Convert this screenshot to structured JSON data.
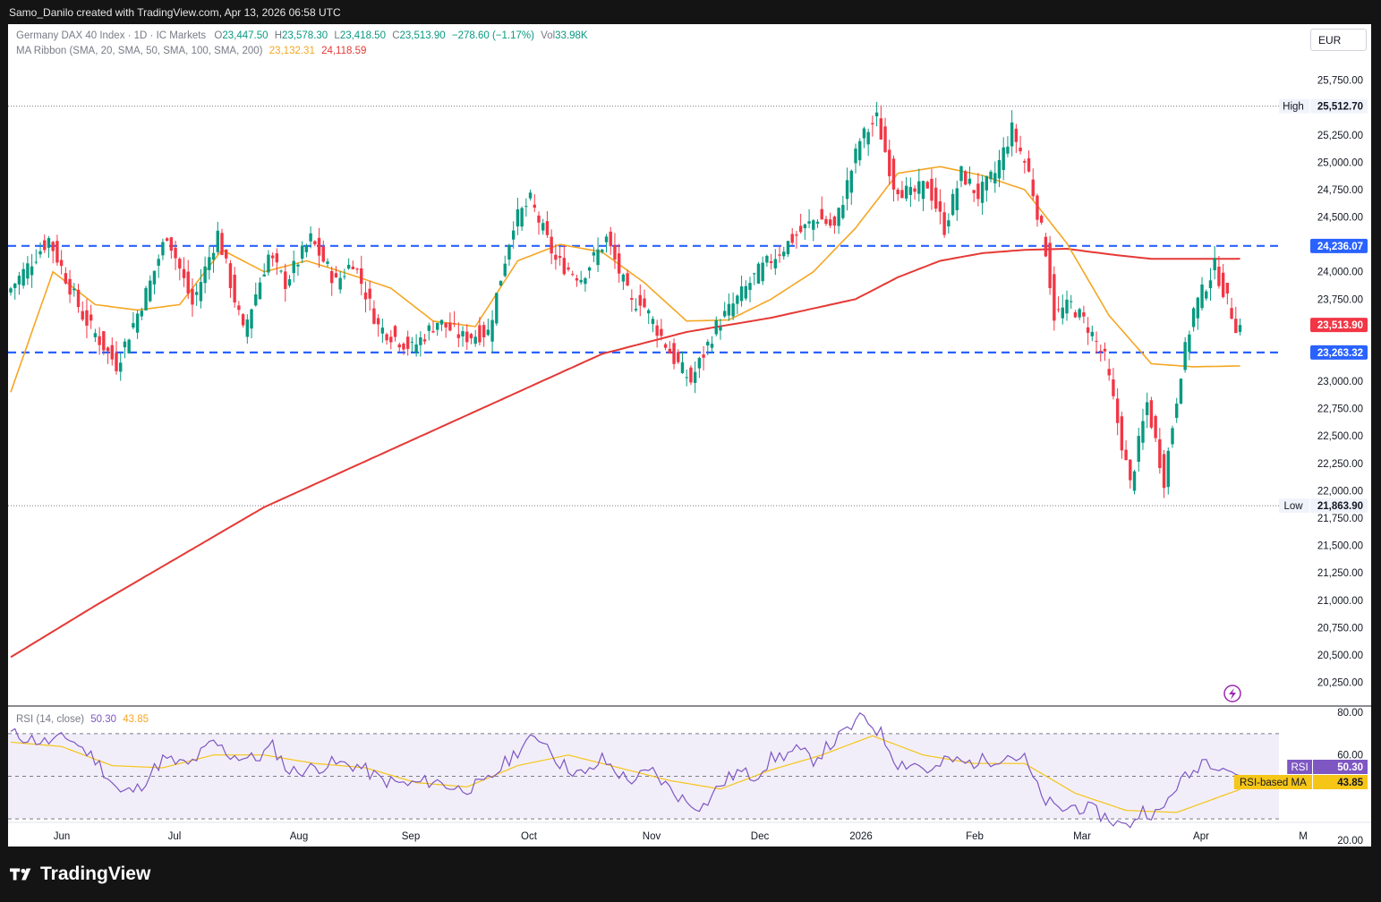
{
  "header": {
    "credit": "Samo_Danilo created with TradingView.com, Apr 13, 2026 06:58 UTC"
  },
  "legend": {
    "symbol": "Germany DAX 40 Index · 1D · IC Markets",
    "o_label": "O",
    "o": "23,447.50",
    "h_label": "H",
    "h": "23,578.30",
    "l_label": "L",
    "l": "23,418.50",
    "c_label": "C",
    "c": "23,513.90",
    "change": "−278.60 (−1.17%)",
    "vol_label": "Vol",
    "vol": "33.98K",
    "ma_label": "MA Ribbon (SMA, 20, SMA, 50, SMA, 100, SMA, 200)",
    "ma_value_1": "23,132.31",
    "ma_value_2": "24,118.59"
  },
  "currency": "EUR",
  "rsi_legend": {
    "label": "RSI (14, close)",
    "rsi": "50.30",
    "rsi_ma": "43.85"
  },
  "footer": {
    "brand": "TradingView"
  },
  "colors": {
    "up": "#089981",
    "down": "#f23645",
    "sma_fast": "#f5a623",
    "sma_slow": "#e53935",
    "level": "#2962ff",
    "rsi": "#7e57c2",
    "rsi_ma": "#f5c518"
  },
  "chart_data": [
    {
      "type": "candlestick",
      "y_axis_ticks": [
        "25,750.00",
        "25,500.00",
        "25,250.00",
        "25,000.00",
        "24,750.00",
        "24,500.00",
        "24,250.00",
        "24,000.00",
        "23,750.00",
        "23,500.00",
        "23,250.00",
        "23,000.00",
        "22,750.00",
        "22,500.00",
        "22,250.00",
        "22,000.00",
        "21,750.00",
        "21,500.00",
        "21,250.00",
        "21,000.00",
        "20,750.00",
        "20,500.00",
        "20,250.00"
      ],
      "x_axis_ticks": [
        "Jun",
        "Jul",
        "Aug",
        "Sep",
        "Oct",
        "Nov",
        "Dec",
        "2026",
        "Feb",
        "Mar",
        "Apr",
        "M"
      ],
      "ylim": [
        20050,
        26000
      ],
      "high": {
        "label": "High",
        "value": 25512.7,
        "text": "25,512.70"
      },
      "low": {
        "label": "Low",
        "value": 21863.9,
        "text": "21,863.90"
      },
      "levels": [
        {
          "value": 24236.07,
          "text": "24,236.07"
        },
        {
          "value": 23263.32,
          "text": "23,263.32"
        }
      ],
      "last_price": {
        "value": 23513.9,
        "text": "23,513.90"
      },
      "anchors": [
        [
          0,
          23800
        ],
        [
          10,
          24300
        ],
        [
          18,
          23600
        ],
        [
          26,
          23150
        ],
        [
          34,
          23900
        ],
        [
          38,
          24350
        ],
        [
          44,
          23700
        ],
        [
          50,
          24350
        ],
        [
          56,
          23450
        ],
        [
          62,
          24150
        ],
        [
          66,
          23900
        ],
        [
          72,
          24300
        ],
        [
          78,
          23900
        ],
        [
          82,
          24100
        ],
        [
          88,
          23500
        ],
        [
          96,
          23300
        ],
        [
          102,
          23550
        ],
        [
          108,
          23400
        ],
        [
          114,
          23450
        ],
        [
          120,
          24450
        ],
        [
          124,
          24650
        ],
        [
          130,
          24100
        ],
        [
          136,
          23950
        ],
        [
          142,
          24300
        ],
        [
          148,
          23700
        ],
        [
          150,
          23750
        ],
        [
          158,
          23200
        ],
        [
          162,
          23000
        ],
        [
          168,
          23500
        ],
        [
          172,
          23700
        ],
        [
          178,
          24000
        ],
        [
          186,
          24300
        ],
        [
          192,
          24500
        ],
        [
          196,
          24400
        ],
        [
          202,
          25200
        ],
        [
          206,
          25400
        ],
        [
          210,
          24800
        ],
        [
          214,
          24700
        ],
        [
          218,
          24800
        ],
        [
          222,
          24400
        ],
        [
          226,
          24900
        ],
        [
          230,
          24700
        ],
        [
          234,
          24900
        ],
        [
          238,
          25300
        ],
        [
          242,
          24900
        ],
        [
          246,
          24200
        ],
        [
          248,
          23600
        ],
        [
          252,
          23700
        ],
        [
          256,
          23500
        ],
        [
          260,
          23200
        ],
        [
          266,
          22050
        ],
        [
          270,
          22800
        ],
        [
          274,
          22100
        ],
        [
          278,
          23100
        ],
        [
          281,
          23650
        ],
        [
          286,
          24050
        ],
        [
          291,
          23514
        ]
      ],
      "sma_fast": [
        [
          0,
          22900
        ],
        [
          10,
          24000
        ],
        [
          20,
          23700
        ],
        [
          30,
          23650
        ],
        [
          40,
          23700
        ],
        [
          50,
          24200
        ],
        [
          60,
          24000
        ],
        [
          70,
          24100
        ],
        [
          80,
          23980
        ],
        [
          90,
          23850
        ],
        [
          100,
          23550
        ],
        [
          110,
          23500
        ],
        [
          120,
          24100
        ],
        [
          130,
          24250
        ],
        [
          140,
          24180
        ],
        [
          150,
          23900
        ],
        [
          160,
          23550
        ],
        [
          170,
          23560
        ],
        [
          180,
          23750
        ],
        [
          190,
          24000
        ],
        [
          200,
          24400
        ],
        [
          210,
          24900
        ],
        [
          220,
          24960
        ],
        [
          230,
          24880
        ],
        [
          240,
          24750
        ],
        [
          250,
          24260
        ],
        [
          260,
          23600
        ],
        [
          270,
          23160
        ],
        [
          280,
          23132
        ],
        [
          291,
          23140
        ]
      ],
      "sma_slow": [
        [
          0,
          20480
        ],
        [
          20,
          20950
        ],
        [
          40,
          21400
        ],
        [
          60,
          21850
        ],
        [
          80,
          22200
        ],
        [
          100,
          22550
        ],
        [
          120,
          22900
        ],
        [
          140,
          23250
        ],
        [
          160,
          23450
        ],
        [
          180,
          23580
        ],
        [
          200,
          23750
        ],
        [
          210,
          23950
        ],
        [
          220,
          24100
        ],
        [
          230,
          24170
        ],
        [
          240,
          24200
        ],
        [
          250,
          24210
        ],
        [
          260,
          24160
        ],
        [
          270,
          24118
        ],
        [
          291,
          24119
        ]
      ]
    },
    {
      "type": "line",
      "label": "RSI (14, close)",
      "y_axis_ticks": [
        "80.00",
        "60.00",
        "20.00"
      ],
      "ylim": [
        17,
        83
      ],
      "bands": [
        70,
        50,
        30
      ],
      "rsi_value": {
        "label": "RSI",
        "text": "50.30",
        "value": 50.3
      },
      "rsi_ma_value": {
        "label": "RSI-based MA",
        "text": "43.85",
        "value": 43.85
      },
      "rsi": [
        [
          0,
          70
        ],
        [
          8,
          66
        ],
        [
          14,
          68
        ],
        [
          20,
          58
        ],
        [
          26,
          42
        ],
        [
          30,
          44
        ],
        [
          36,
          58
        ],
        [
          42,
          55
        ],
        [
          48,
          66
        ],
        [
          52,
          60
        ],
        [
          58,
          58
        ],
        [
          62,
          64
        ],
        [
          66,
          52
        ],
        [
          72,
          54
        ],
        [
          76,
          56
        ],
        [
          82,
          55
        ],
        [
          88,
          48
        ],
        [
          94,
          46
        ],
        [
          100,
          48
        ],
        [
          106,
          44
        ],
        [
          112,
          46
        ],
        [
          118,
          58
        ],
        [
          122,
          66
        ],
        [
          126,
          68
        ],
        [
          130,
          56
        ],
        [
          136,
          50
        ],
        [
          140,
          58
        ],
        [
          146,
          48
        ],
        [
          152,
          52
        ],
        [
          156,
          44
        ],
        [
          160,
          38
        ],
        [
          164,
          36
        ],
        [
          168,
          46
        ],
        [
          172,
          52
        ],
        [
          176,
          50
        ],
        [
          180,
          58
        ],
        [
          186,
          62
        ],
        [
          190,
          58
        ],
        [
          196,
          68
        ],
        [
          200,
          75
        ],
        [
          202,
          78
        ],
        [
          206,
          70
        ],
        [
          210,
          56
        ],
        [
          214,
          56
        ],
        [
          218,
          52
        ],
        [
          222,
          58
        ],
        [
          226,
          56
        ],
        [
          232,
          58
        ],
        [
          236,
          60
        ],
        [
          240,
          58
        ],
        [
          244,
          40
        ],
        [
          248,
          34
        ],
        [
          252,
          36
        ],
        [
          256,
          34
        ],
        [
          260,
          30
        ],
        [
          264,
          26
        ],
        [
          268,
          34
        ],
        [
          272,
          32
        ],
        [
          276,
          46
        ],
        [
          280,
          52
        ],
        [
          282,
          58
        ],
        [
          286,
          56
        ],
        [
          291,
          50.3
        ]
      ],
      "rsi_ma": [
        [
          0,
          66
        ],
        [
          12,
          64
        ],
        [
          24,
          55
        ],
        [
          36,
          54
        ],
        [
          48,
          60
        ],
        [
          60,
          60
        ],
        [
          72,
          56
        ],
        [
          84,
          54
        ],
        [
          96,
          47
        ],
        [
          108,
          45
        ],
        [
          120,
          55
        ],
        [
          132,
          60
        ],
        [
          144,
          54
        ],
        [
          156,
          48
        ],
        [
          168,
          44
        ],
        [
          180,
          53
        ],
        [
          192,
          60
        ],
        [
          204,
          69
        ],
        [
          216,
          60
        ],
        [
          228,
          56
        ],
        [
          240,
          56
        ],
        [
          252,
          42
        ],
        [
          264,
          34
        ],
        [
          276,
          33
        ],
        [
          291,
          43.85
        ]
      ]
    }
  ]
}
